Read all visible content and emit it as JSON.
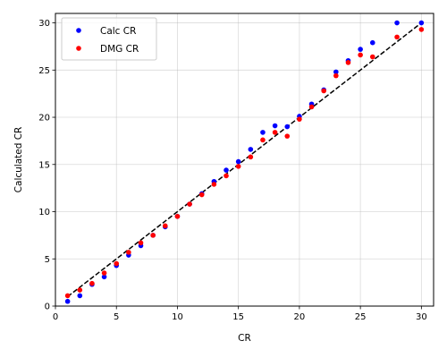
{
  "chart_data": {
    "type": "scatter",
    "title": "",
    "xlabel": "CR",
    "ylabel": "Calculated CR",
    "xlim": [
      0,
      31
    ],
    "ylim": [
      0,
      31
    ],
    "xticks": [
      0,
      5,
      10,
      15,
      20,
      25,
      30
    ],
    "yticks": [
      0,
      5,
      10,
      15,
      20,
      25,
      30
    ],
    "grid": true,
    "legend_position": "top-left",
    "series": [
      {
        "name": "Calc CR",
        "color": "#0000ff",
        "marker": "circle",
        "points": [
          [
            1,
            0.5
          ],
          [
            2,
            1.1
          ],
          [
            3,
            2.3
          ],
          [
            4,
            3.1
          ],
          [
            5,
            4.3
          ],
          [
            6,
            5.4
          ],
          [
            7,
            6.4
          ],
          [
            8,
            7.5
          ],
          [
            9,
            8.4
          ],
          [
            10,
            9.5
          ],
          [
            11,
            10.8
          ],
          [
            12,
            11.9
          ],
          [
            13,
            13.2
          ],
          [
            14,
            14.4
          ],
          [
            15,
            15.3
          ],
          [
            16,
            16.6
          ],
          [
            17,
            18.4
          ],
          [
            18,
            19.1
          ],
          [
            19,
            19.0
          ],
          [
            20,
            20.1
          ],
          [
            21,
            21.4
          ],
          [
            22,
            22.9
          ],
          [
            23,
            24.8
          ],
          [
            24,
            26.0
          ],
          [
            25,
            27.2
          ],
          [
            26,
            27.9
          ],
          [
            28,
            30.0
          ],
          [
            30,
            30.0
          ]
        ]
      },
      {
        "name": "DMG CR",
        "color": "#ff0000",
        "marker": "circle",
        "points": [
          [
            1,
            1.1
          ],
          [
            2,
            1.7
          ],
          [
            3,
            2.4
          ],
          [
            4,
            3.5
          ],
          [
            5,
            4.5
          ],
          [
            6,
            5.7
          ],
          [
            7,
            6.7
          ],
          [
            8,
            7.5
          ],
          [
            9,
            8.5
          ],
          [
            10,
            9.5
          ],
          [
            11,
            10.8
          ],
          [
            12,
            11.8
          ],
          [
            13,
            12.9
          ],
          [
            14,
            13.8
          ],
          [
            15,
            14.8
          ],
          [
            16,
            15.8
          ],
          [
            17,
            17.6
          ],
          [
            18,
            18.4
          ],
          [
            19,
            18.0
          ],
          [
            20,
            19.8
          ],
          [
            21,
            21.1
          ],
          [
            22,
            22.8
          ],
          [
            23,
            24.4
          ],
          [
            24,
            25.8
          ],
          [
            25,
            26.6
          ],
          [
            26,
            26.4
          ],
          [
            28,
            28.5
          ],
          [
            30,
            29.3
          ]
        ]
      }
    ],
    "reference_line": {
      "style": "dashed",
      "color": "#000000",
      "points": [
        [
          1,
          1
        ],
        [
          30,
          30
        ]
      ]
    }
  }
}
